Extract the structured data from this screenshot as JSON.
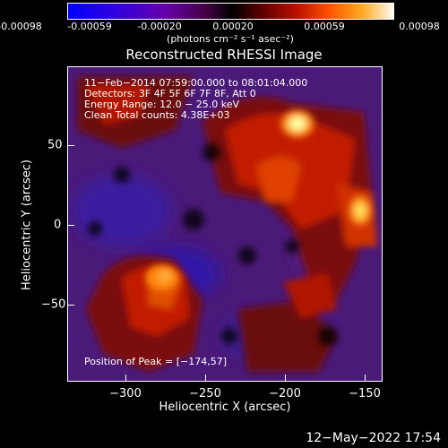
{
  "colorbar": {
    "ticks": [
      "-0.00098",
      "-0.00059",
      "-0.00020",
      "0.00020",
      "0.00059",
      "0.00098"
    ],
    "unit_label": "(photons cm⁻² s⁻¹ asec⁻²)",
    "colors": [
      "#0000ff",
      "#4400cc",
      "#550088",
      "#8800aa",
      "#000000",
      "#770000",
      "#cc2200",
      "#ff7700",
      "#ffcc33",
      "#ffffff"
    ]
  },
  "title": "Reconstructed RHESSI Image",
  "info": {
    "line1": "11−Feb−2014 07:59:00.000 to 08:01:04.000",
    "line2": "Detectors: 3F 4F 5F 6F 7F 8F, Att 0",
    "line3": "Energy Range: 12.0 − 25.0 keV",
    "line4": "Clean     Total counts: 4.38E+03",
    "peak": "Position of Peak = [−174,57]"
  },
  "axes": {
    "xlabel": "Heliocentric X (arcsec)",
    "ylabel": "Heliocentric Y (arcsec)",
    "xticks": [
      "−300",
      "−250",
      "−200",
      "−150"
    ],
    "yticks": [
      "50",
      "0",
      "−50"
    ]
  },
  "timestamp": "12−May−2022 17:54"
}
